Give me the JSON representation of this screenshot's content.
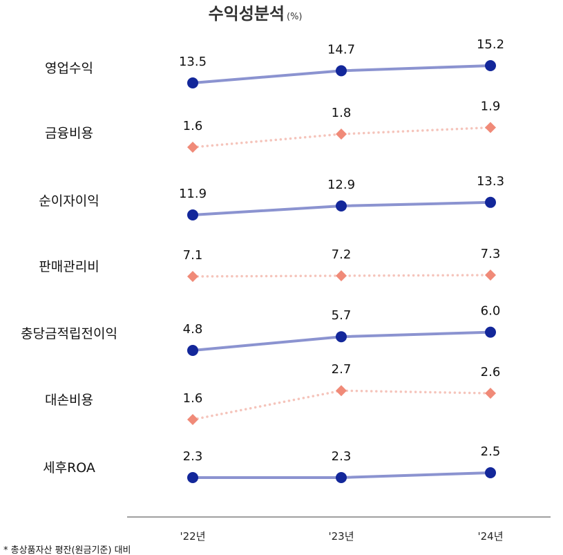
{
  "chart_data": {
    "type": "line",
    "title": "수익성분석",
    "unit": "(%)",
    "categories": [
      "'22년",
      "'23년",
      "'24년"
    ],
    "series": [
      {
        "name": "영업수익",
        "values": [
          13.5,
          14.7,
          15.2
        ],
        "style": "solid-circle"
      },
      {
        "name": "금융비용",
        "values": [
          1.6,
          1.8,
          1.9
        ],
        "style": "dotted-diamond"
      },
      {
        "name": "순이자이익",
        "values": [
          11.9,
          12.9,
          13.3
        ],
        "style": "solid-circle"
      },
      {
        "name": "판매관리비",
        "values": [
          7.1,
          7.2,
          7.3
        ],
        "style": "dotted-diamond"
      },
      {
        "name": "충당금적립전이익",
        "values": [
          4.8,
          5.7,
          6.0
        ],
        "style": "solid-circle"
      },
      {
        "name": "대손비용",
        "values": [
          1.6,
          2.7,
          2.6
        ],
        "style": "dotted-diamond"
      },
      {
        "name": "세후ROA",
        "values": [
          2.3,
          2.3,
          2.5
        ],
        "style": "solid-circle"
      }
    ],
    "footnote": "* 총상품자산 평잔(원금기준) 대비",
    "colors": {
      "solid_line": "#8b93d0",
      "solid_marker": "#13279a",
      "dotted_line": "#f5c4bb",
      "dotted_marker": "#f08a78",
      "axis": "#666666"
    }
  }
}
